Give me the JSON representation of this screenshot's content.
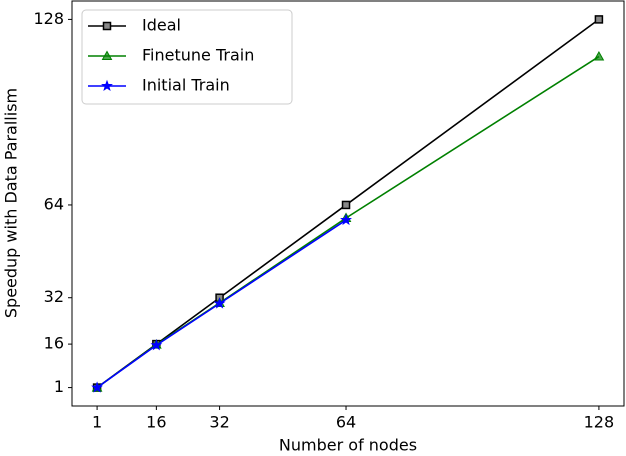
{
  "chart_data": {
    "type": "line",
    "xlabel": "Number of nodes",
    "ylabel": "Speedup with Data Parallism",
    "x": [
      1,
      16,
      32,
      64,
      128
    ],
    "series": [
      {
        "name": "Ideal",
        "color": "#000000",
        "marker": "square",
        "values": [
          1,
          16,
          32,
          64,
          128
        ]
      },
      {
        "name": "Finetune Train",
        "color": "#008000",
        "marker": "triangle",
        "values": [
          1,
          15.8,
          30.2,
          59.5,
          115.2
        ]
      },
      {
        "name": "Initial Train",
        "color": "#0000ff",
        "marker": "star",
        "values": [
          1,
          15.6,
          30.0,
          58.8,
          null
        ]
      }
    ],
    "xlim": [
      -5.35,
      134.35
    ],
    "xticks": [
      1,
      16,
      32,
      64,
      128
    ],
    "ylim": [
      -5.35,
      134.35
    ],
    "yticks": [
      1,
      16,
      32,
      64,
      128
    ],
    "legend": "upper left"
  }
}
